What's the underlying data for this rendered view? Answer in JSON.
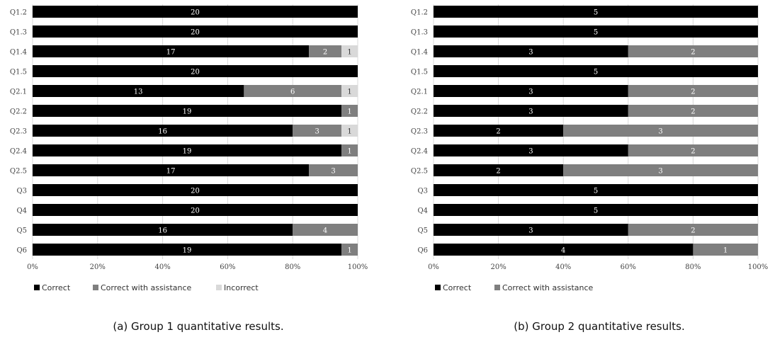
{
  "colors": {
    "Correct": "#000000",
    "Correct with assistance": "#7f7f7f",
    "Incorrect": "#d9d9d9"
  },
  "captions": [
    "(a) Group 1 quantitative results.",
    "(b) Group 2 quantitative results."
  ],
  "chart_data": [
    {
      "type": "bar",
      "orientation": "horizontal",
      "stacked": "percent",
      "title": "",
      "categories": [
        "Q1.2",
        "Q1.3",
        "Q1.4",
        "Q1.5",
        "Q2.1",
        "Q2.2",
        "Q2.3",
        "Q2.4",
        "Q2.5",
        "Q3",
        "Q4",
        "Q5",
        "Q6"
      ],
      "series": [
        {
          "name": "Correct",
          "values": [
            20,
            20,
            17,
            20,
            13,
            19,
            16,
            19,
            17,
            20,
            20,
            16,
            19
          ]
        },
        {
          "name": "Correct with assistance",
          "values": [
            0,
            0,
            2,
            0,
            6,
            1,
            3,
            1,
            3,
            0,
            0,
            4,
            1
          ]
        },
        {
          "name": "Incorrect",
          "values": [
            0,
            0,
            1,
            0,
            1,
            0,
            1,
            0,
            0,
            0,
            0,
            0,
            0
          ]
        }
      ],
      "xticks": [
        "0%",
        "20%",
        "40%",
        "60%",
        "80%",
        "100%"
      ],
      "xlim": [
        0,
        100
      ],
      "grid": "vertical",
      "legend": "bottom"
    },
    {
      "type": "bar",
      "orientation": "horizontal",
      "stacked": "percent",
      "title": "",
      "categories": [
        "Q1.2",
        "Q1.3",
        "Q1.4",
        "Q1.5",
        "Q2.1",
        "Q2.2",
        "Q2.3",
        "Q2.4",
        "Q2.5",
        "Q3",
        "Q4",
        "Q5",
        "Q6"
      ],
      "series": [
        {
          "name": "Correct",
          "values": [
            5,
            5,
            3,
            5,
            3,
            3,
            2,
            3,
            2,
            5,
            5,
            3,
            4
          ]
        },
        {
          "name": "Correct with assistance",
          "values": [
            0,
            0,
            2,
            0,
            2,
            2,
            3,
            2,
            3,
            0,
            0,
            2,
            1
          ]
        }
      ],
      "xticks": [
        "0%",
        "20%",
        "40%",
        "60%",
        "80%",
        "100%"
      ],
      "xlim": [
        0,
        100
      ],
      "grid": "vertical",
      "legend": "bottom"
    }
  ]
}
